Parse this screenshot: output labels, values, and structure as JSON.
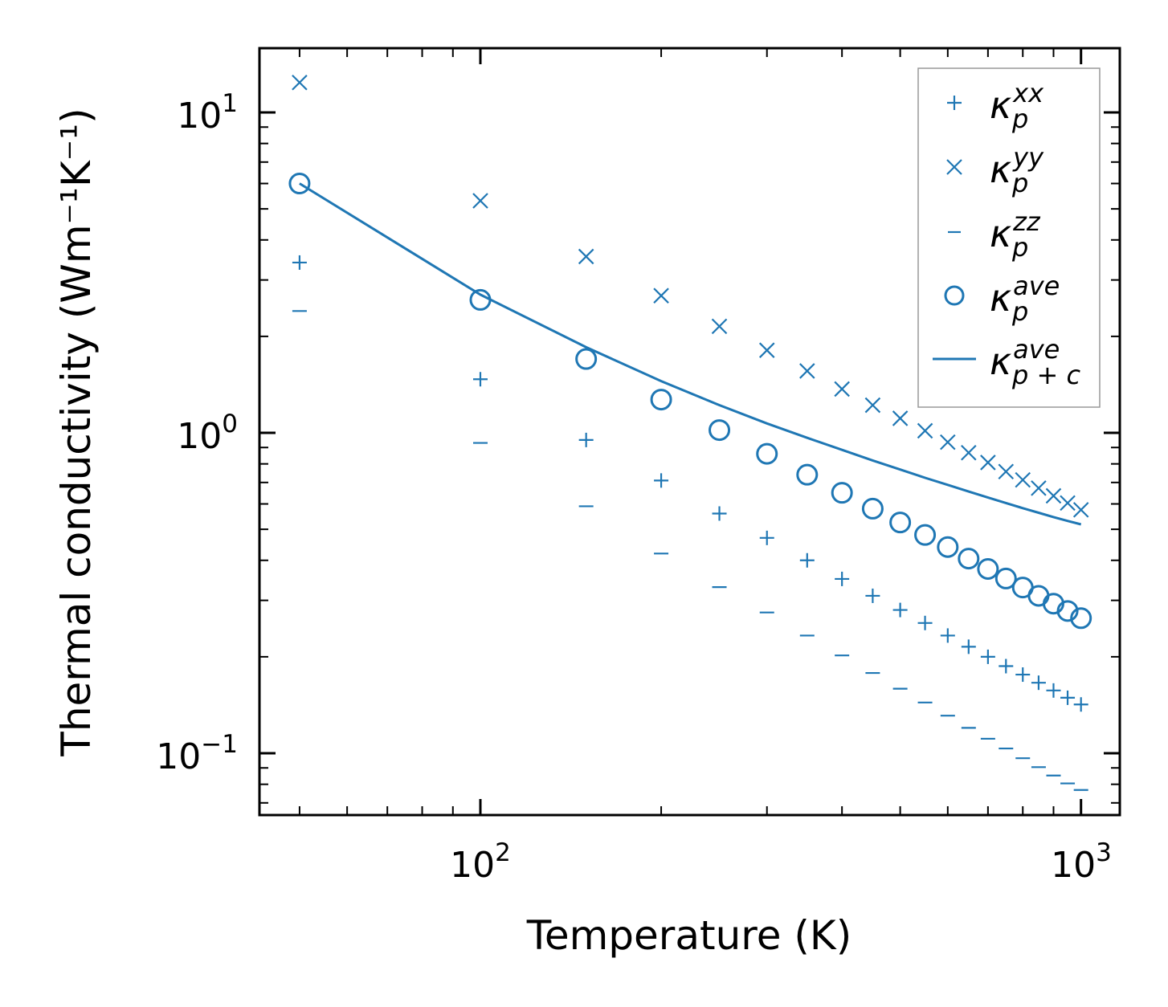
{
  "chart_data": {
    "type": "scatter",
    "xscale": "log",
    "yscale": "log",
    "xlabel": "Temperature (K)",
    "ylabel": "Thermal conductivity (Wm⁻¹K⁻¹)",
    "xlim": [
      45,
      1050
    ],
    "ylim": [
      0.065,
      16
    ],
    "xticks": [
      {
        "value": 100,
        "base": "10",
        "exp": "2"
      },
      {
        "value": 1000,
        "base": "10",
        "exp": "3"
      }
    ],
    "yticks": [
      {
        "value": 0.1,
        "base": "10",
        "exp": "−1"
      },
      {
        "value": 1,
        "base": "10",
        "exp": "0"
      },
      {
        "value": 10,
        "base": "10",
        "exp": "1"
      }
    ],
    "legend_position": "top-right",
    "color": "#1f77b4",
    "x": [
      50,
      100,
      150,
      200,
      250,
      300,
      350,
      400,
      450,
      500,
      550,
      600,
      650,
      700,
      750,
      800,
      850,
      900,
      950,
      1000
    ],
    "series": [
      {
        "name": "kappa_p_xx",
        "label_main": "κ",
        "label_sub": "p",
        "label_sup": "xx",
        "marker": "plus",
        "values": [
          3.4,
          1.47,
          0.95,
          0.71,
          0.56,
          0.47,
          0.4,
          0.35,
          0.31,
          0.28,
          0.255,
          0.233,
          0.215,
          0.2,
          0.187,
          0.176,
          0.166,
          0.157,
          0.149,
          0.142
        ]
      },
      {
        "name": "kappa_p_yy",
        "label_main": "κ",
        "label_sub": "p",
        "label_sup": "yy",
        "marker": "x",
        "values": [
          12.4,
          5.3,
          3.55,
          2.68,
          2.15,
          1.81,
          1.56,
          1.37,
          1.22,
          1.11,
          1.015,
          0.935,
          0.867,
          0.808,
          0.757,
          0.713,
          0.672,
          0.636,
          0.604,
          0.575
        ]
      },
      {
        "name": "kappa_p_zz",
        "label_main": "κ",
        "label_sub": "p",
        "label_sup": "zz",
        "marker": "hline",
        "values": [
          2.4,
          0.93,
          0.59,
          0.42,
          0.33,
          0.275,
          0.233,
          0.202,
          0.178,
          0.159,
          0.144,
          0.131,
          0.12,
          0.111,
          0.1035,
          0.0965,
          0.0905,
          0.0852,
          0.0805,
          0.0768
        ]
      },
      {
        "name": "kappa_p_ave",
        "label_main": "κ",
        "label_sub": "p",
        "label_sup": "ave",
        "marker": "circle",
        "values": [
          6.0,
          2.6,
          1.7,
          1.27,
          1.02,
          0.86,
          0.74,
          0.65,
          0.58,
          0.525,
          0.48,
          0.44,
          0.405,
          0.376,
          0.351,
          0.329,
          0.31,
          0.293,
          0.278,
          0.264
        ]
      },
      {
        "name": "kappa_pc_ave",
        "label_main": "κ",
        "label_sub": "p + c",
        "label_sup": "ave",
        "marker": "line",
        "values": [
          6.0,
          2.7,
          1.85,
          1.45,
          1.22,
          1.07,
          0.965,
          0.885,
          0.82,
          0.768,
          0.724,
          0.688,
          0.656,
          0.628,
          0.604,
          0.582,
          0.563,
          0.546,
          0.531,
          0.518
        ]
      }
    ]
  }
}
